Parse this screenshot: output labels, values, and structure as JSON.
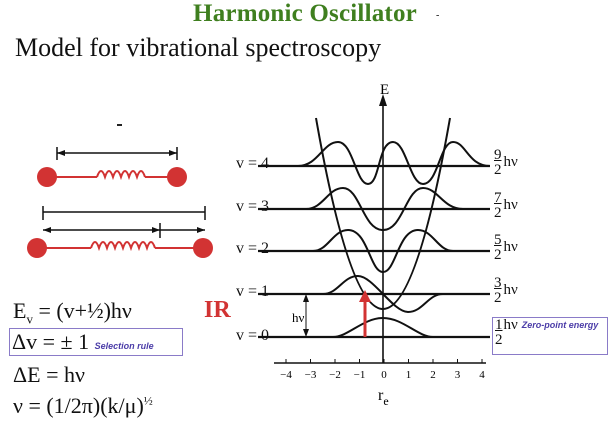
{
  "title": "Harmonic Oscillator",
  "subtitle": "Model for vibrational spectroscopy",
  "stray_mark": "-",
  "ir_label": "IR",
  "equations": {
    "energy_lhs": "E",
    "energy_sub": "v",
    "energy_rhs": " = (v+½)hν",
    "selection": "Δv = ± 1",
    "selection_note": "Selection rule",
    "delta_e": "ΔE = hν",
    "frequency": "ν = (1/2π)(k/μ)",
    "frequency_sup": "½"
  },
  "levels": [
    {
      "label": "v = 4",
      "numerator": "9",
      "denominator": "2",
      "unit": "hν"
    },
    {
      "label": "v = 3",
      "numerator": "7",
      "denominator": "2",
      "unit": "hν"
    },
    {
      "label": "v = 2",
      "numerator": "5",
      "denominator": "2",
      "unit": "hν"
    },
    {
      "label": "v = 1",
      "numerator": "3",
      "denominator": "2",
      "unit": "hν"
    },
    {
      "label": "v = 0",
      "numerator": "1",
      "denominator": "2",
      "unit": "hν"
    }
  ],
  "zero_point_note": "Zero-point energy",
  "axis": {
    "y_label": "E",
    "x_label": "r",
    "x_label_sub": "e",
    "x_ticks": [
      "−4",
      "−3",
      "−2",
      "−1",
      "0",
      "1",
      "2",
      "3",
      "4"
    ],
    "hv_label": "hν"
  },
  "colors": {
    "title": "#3f7f1f",
    "spring": "#d23333",
    "ir_arrow": "#d23333",
    "box": "#8a7bc8"
  }
}
